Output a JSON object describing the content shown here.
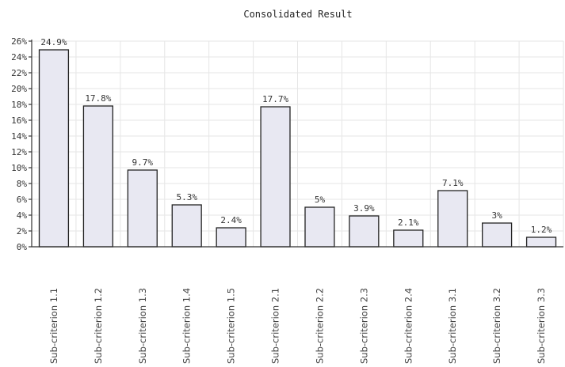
{
  "chart_data": {
    "type": "bar",
    "title": "Consolidated Result",
    "categories": [
      "Sub-criterion 1.1",
      "Sub-criterion 1.2",
      "Sub-criterion 1.3",
      "Sub-criterion 1.4",
      "Sub-criterion 1.5",
      "Sub-criterion 2.1",
      "Sub-criterion 2.2",
      "Sub-criterion 2.3",
      "Sub-criterion 2.4",
      "Sub-criterion 3.1",
      "Sub-criterion 3.2",
      "Sub-criterion 3.3"
    ],
    "values": [
      24.9,
      17.8,
      9.7,
      5.3,
      2.4,
      17.7,
      5,
      3.9,
      2.1,
      7.1,
      3,
      1.2
    ],
    "data_labels": [
      "24.9%",
      "17.8%",
      "9.7%",
      "5.3%",
      "2.4%",
      "17.7%",
      "5%",
      "3.9%",
      "2.1%",
      "7.1%",
      "3%",
      "1.2%"
    ],
    "ylim": [
      0,
      26
    ],
    "yticks": [
      0,
      2,
      4,
      6,
      8,
      10,
      12,
      14,
      16,
      18,
      20,
      22,
      24,
      26
    ],
    "ytick_labels": [
      "0%",
      "2%",
      "4%",
      "6%",
      "8%",
      "10%",
      "12%",
      "14%",
      "16%",
      "18%",
      "20%",
      "22%",
      "24%",
      "26%"
    ],
    "xlabel": "",
    "ylabel": "",
    "grid": true,
    "legend": "none",
    "colors": {
      "bar_fill": "#e8e8f2",
      "bar_stroke": "#222222",
      "grid": "#e6e6e6"
    }
  }
}
